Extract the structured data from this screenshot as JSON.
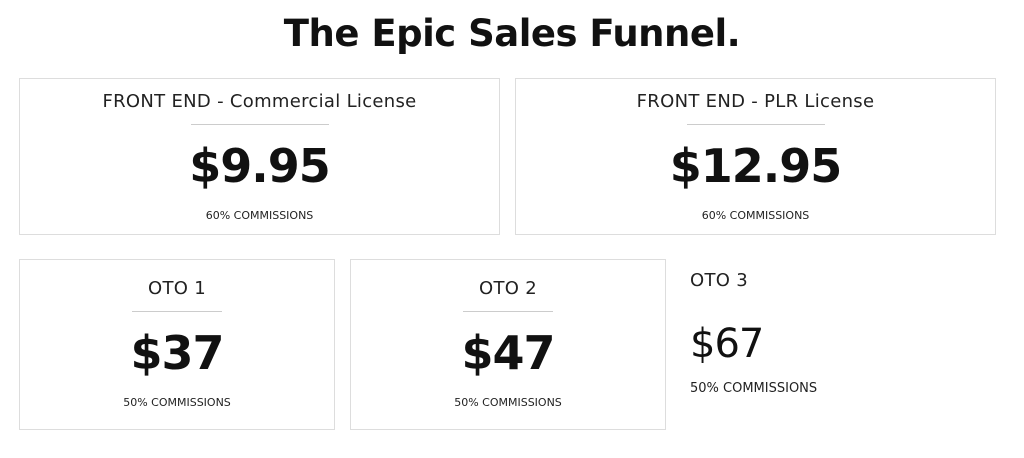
{
  "header": {
    "title": "The Epic Sales Funnel."
  },
  "cards": [
    {
      "title": "FRONT END - Commercial License",
      "price": "$9.95",
      "commission": "60% COMMISSIONS"
    },
    {
      "title": "FRONT END - PLR License",
      "price": "$12.95",
      "commission": "60% COMMISSIONS"
    },
    {
      "title": "OTO 1",
      "price": "$37",
      "commission": "50% COMMISSIONS"
    },
    {
      "title": "OTO 2",
      "price": "$47",
      "commission": "50% COMMISSIONS"
    },
    {
      "title": "OTO 3",
      "price": "$67",
      "commission": "50% COMMISSIONS"
    }
  ]
}
